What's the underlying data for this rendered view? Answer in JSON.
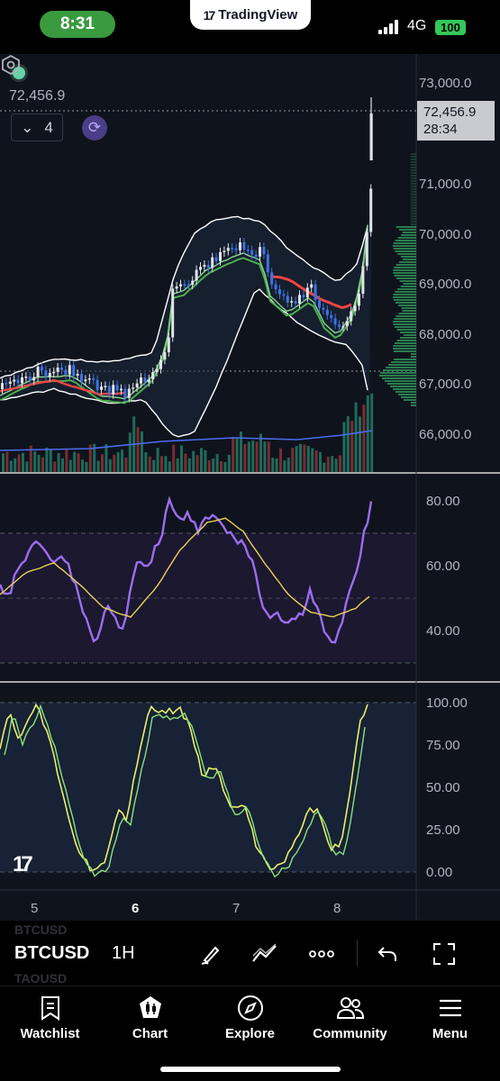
{
  "status_bar": {
    "time": "8:31",
    "app_banner": "TradingView",
    "network": "4G",
    "battery": "100"
  },
  "chart": {
    "legend_price": "72,456.9",
    "collapse_count": "4",
    "current_price": "72,456.9",
    "countdown": "28:34",
    "price_axis": [
      "73,000.0",
      "71,000.0",
      "70,000.0",
      "69,000.0",
      "68,000.0",
      "67,000.0",
      "66,000.0"
    ],
    "rsi_axis": [
      "80.00",
      "60.00",
      "40.00"
    ],
    "stoch_axis": [
      "100.00",
      "75.00",
      "50.00",
      "25.00",
      "0.00"
    ],
    "time_axis": [
      {
        "label": "5",
        "bold": false
      },
      {
        "label": "6",
        "bold": true
      },
      {
        "label": "7",
        "bold": false
      },
      {
        "label": "8",
        "bold": false
      }
    ],
    "colors": {
      "up": "#e1e3e8",
      "down": "#3f72e6",
      "rsi": "#9b6ef0",
      "rsi_ma": "#e9d25a",
      "stoch_k": "#e9f06a",
      "stoch_d": "#8fe07a",
      "bb": "#ffffff",
      "ema_fast": "#ef4444",
      "ema_slow": "#4caf50"
    }
  },
  "toolbar": {
    "ghost_above": "BTCUSD",
    "symbol": "BTCUSD",
    "interval": "1H",
    "ghost_below": "TAOUSD"
  },
  "bottom_nav": {
    "items": [
      {
        "label": "Watchlist",
        "icon": "bookmark-icon"
      },
      {
        "label": "Chart",
        "icon": "chart-candle-icon"
      },
      {
        "label": "Explore",
        "icon": "compass-icon"
      },
      {
        "label": "Community",
        "icon": "users-icon"
      },
      {
        "label": "Menu",
        "icon": "hamburger-icon"
      }
    ]
  }
}
